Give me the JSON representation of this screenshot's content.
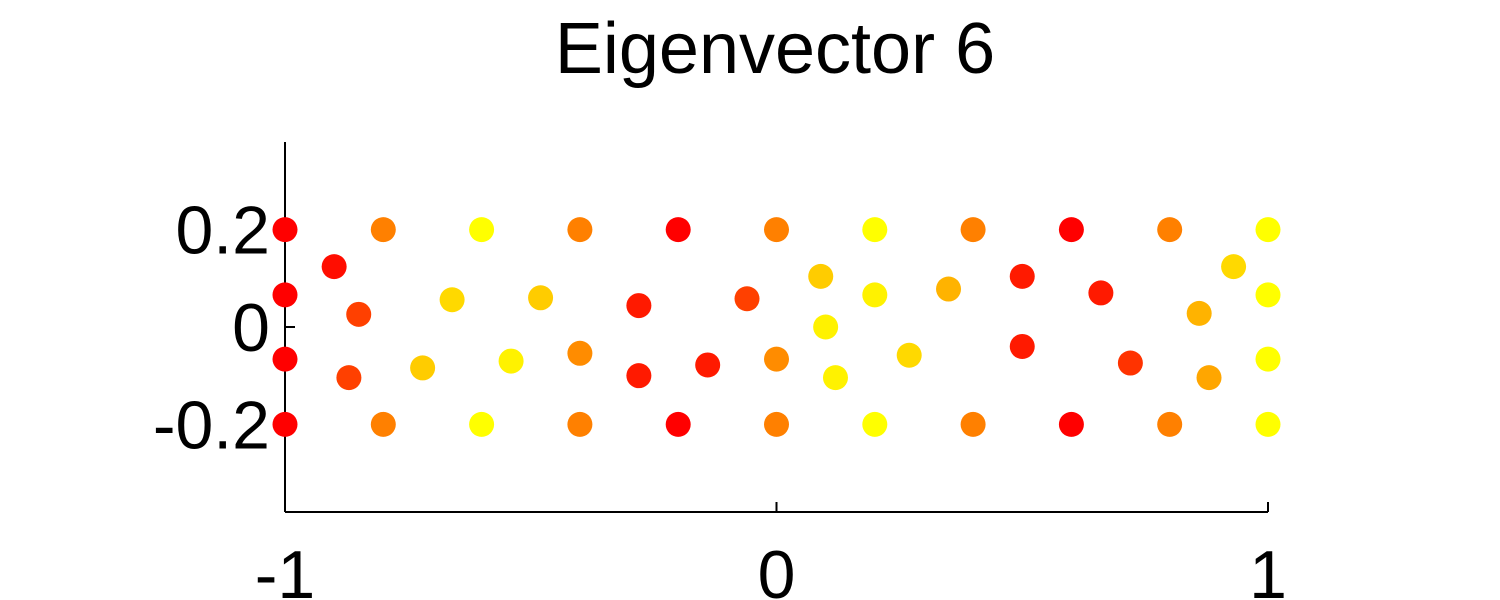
{
  "chart_data": {
    "type": "scatter",
    "title": "Eigenvector 6",
    "xlabel": "",
    "ylabel": "",
    "xlim": [
      -1,
      1
    ],
    "ylim": [
      -0.38,
      0.38
    ],
    "xticks": [
      -1,
      0,
      1
    ],
    "xtick_labels": [
      "-1",
      "0",
      "1"
    ],
    "yticks": [
      -0.2,
      0,
      0.2
    ],
    "ytick_labels": [
      "-0.2",
      "0",
      "0.2"
    ],
    "grid": false,
    "color_scale": "red-to-yellow (value 0 = red #ff0000, value 1 = yellow #ffff00)",
    "points": [
      {
        "x": -1.0,
        "y": 0.2,
        "c": 0.0
      },
      {
        "x": -0.8,
        "y": 0.2,
        "c": 0.5
      },
      {
        "x": -0.6,
        "y": 0.2,
        "c": 1.0
      },
      {
        "x": -0.4,
        "y": 0.2,
        "c": 0.5
      },
      {
        "x": -0.2,
        "y": 0.2,
        "c": 0.0
      },
      {
        "x": 0.0,
        "y": 0.2,
        "c": 0.5
      },
      {
        "x": 0.2,
        "y": 0.2,
        "c": 1.0
      },
      {
        "x": 0.4,
        "y": 0.2,
        "c": 0.5
      },
      {
        "x": 0.6,
        "y": 0.2,
        "c": 0.0
      },
      {
        "x": 0.8,
        "y": 0.2,
        "c": 0.5
      },
      {
        "x": 1.0,
        "y": 0.2,
        "c": 1.0
      },
      {
        "x": -1.0,
        "y": -0.2,
        "c": 0.0
      },
      {
        "x": -0.8,
        "y": -0.2,
        "c": 0.5
      },
      {
        "x": -0.6,
        "y": -0.2,
        "c": 1.0
      },
      {
        "x": -0.4,
        "y": -0.2,
        "c": 0.5
      },
      {
        "x": -0.2,
        "y": -0.2,
        "c": 0.0
      },
      {
        "x": 0.0,
        "y": -0.2,
        "c": 0.5
      },
      {
        "x": 0.2,
        "y": -0.2,
        "c": 1.0
      },
      {
        "x": 0.4,
        "y": -0.2,
        "c": 0.5
      },
      {
        "x": 0.6,
        "y": -0.2,
        "c": 0.0
      },
      {
        "x": 0.8,
        "y": -0.2,
        "c": 0.5
      },
      {
        "x": 1.0,
        "y": -0.2,
        "c": 1.0
      },
      {
        "x": -1.0,
        "y": 0.066,
        "c": 0.0
      },
      {
        "x": -1.0,
        "y": -0.066,
        "c": 0.0
      },
      {
        "x": 1.0,
        "y": 0.066,
        "c": 1.0
      },
      {
        "x": 1.0,
        "y": -0.066,
        "c": 1.0
      },
      {
        "x": -0.9,
        "y": 0.124,
        "c": 0.05
      },
      {
        "x": -0.85,
        "y": 0.026,
        "c": 0.25
      },
      {
        "x": -0.87,
        "y": -0.104,
        "c": 0.25
      },
      {
        "x": -0.72,
        "y": -0.084,
        "c": 0.8
      },
      {
        "x": -0.66,
        "y": 0.056,
        "c": 0.85
      },
      {
        "x": -0.54,
        "y": -0.07,
        "c": 0.95
      },
      {
        "x": -0.48,
        "y": 0.06,
        "c": 0.8
      },
      {
        "x": -0.4,
        "y": -0.054,
        "c": 0.55
      },
      {
        "x": -0.28,
        "y": 0.044,
        "c": 0.1
      },
      {
        "x": -0.28,
        "y": -0.1,
        "c": 0.1
      },
      {
        "x": -0.14,
        "y": -0.078,
        "c": 0.1
      },
      {
        "x": -0.06,
        "y": 0.058,
        "c": 0.25
      },
      {
        "x": 0.0,
        "y": -0.066,
        "c": 0.55
      },
      {
        "x": 0.09,
        "y": 0.104,
        "c": 0.8
      },
      {
        "x": 0.1,
        "y": 0.0,
        "c": 0.95
      },
      {
        "x": 0.12,
        "y": -0.104,
        "c": 0.95
      },
      {
        "x": 0.2,
        "y": 0.066,
        "c": 0.95
      },
      {
        "x": 0.27,
        "y": -0.058,
        "c": 0.85
      },
      {
        "x": 0.35,
        "y": 0.078,
        "c": 0.7
      },
      {
        "x": 0.5,
        "y": 0.104,
        "c": 0.1
      },
      {
        "x": 0.5,
        "y": -0.04,
        "c": 0.1
      },
      {
        "x": 0.66,
        "y": 0.07,
        "c": 0.1
      },
      {
        "x": 0.72,
        "y": -0.074,
        "c": 0.2
      },
      {
        "x": 0.86,
        "y": 0.028,
        "c": 0.7
      },
      {
        "x": 0.88,
        "y": -0.104,
        "c": 0.65
      },
      {
        "x": 0.93,
        "y": 0.124,
        "c": 0.85
      }
    ]
  }
}
